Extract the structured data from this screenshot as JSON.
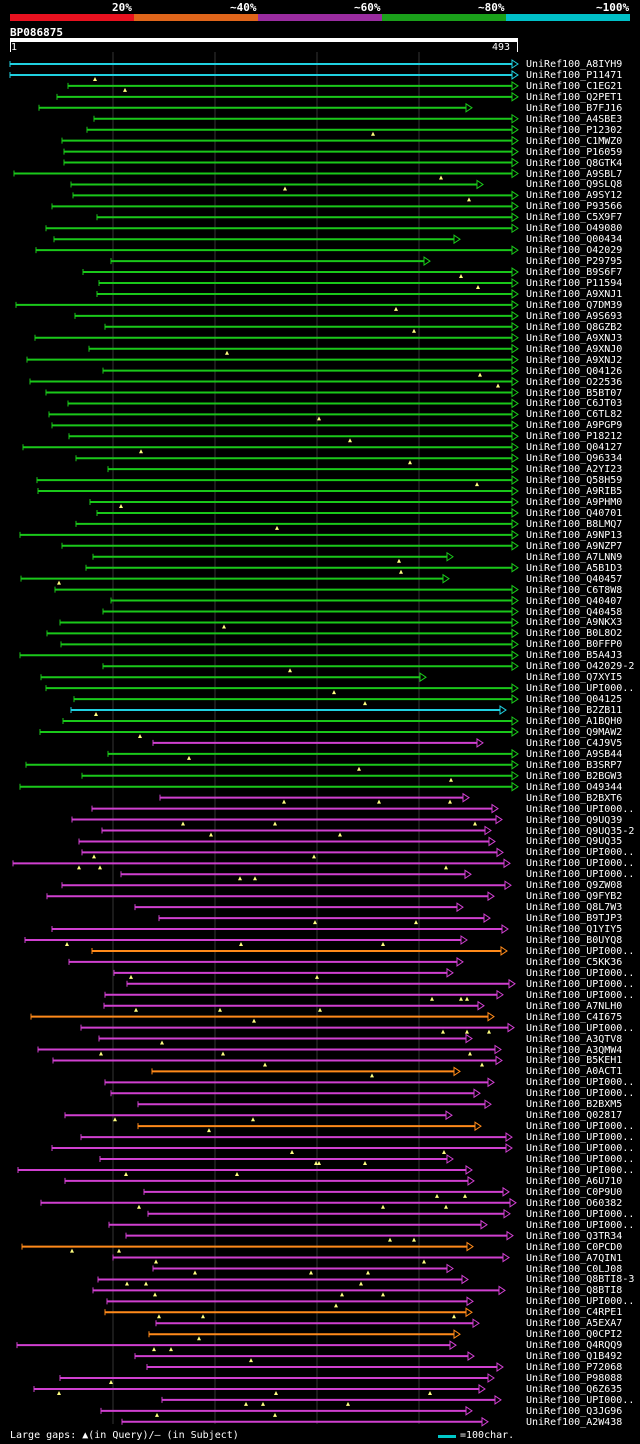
{
  "colors": {
    "lt20": "#e8111f",
    "p40": "#e0651a",
    "p60": "#9a2ca0",
    "p80": "#1aa01a",
    "p100": "#00c0c8",
    "sub_magenta": "#d040d0",
    "sub_orange": "#ff8a1a",
    "sub_green": "#1ac81a",
    "sub_cyan": "#20d0e0"
  },
  "legend": {
    "labels": [
      "20%",
      "~40%",
      "~60%",
      "~80%",
      "~100%"
    ]
  },
  "query": {
    "name": "BP086875",
    "start": "1",
    "end": "493"
  },
  "footer": {
    "gaps_text": "Large gaps: ▲(in Query)/― (in Subject)",
    "scale_text": "=100char."
  },
  "hits": [
    {
      "name": "UniRef100_A8IYH9",
      "c": "cyan"
    },
    {
      "name": "UniRef100_P11471",
      "c": "cyan"
    },
    {
      "name": "UniRef100_C1EG21",
      "c": "green"
    },
    {
      "name": "UniRef100_Q2PET1",
      "c": "green"
    },
    {
      "name": "UniRef100_B7FJ16",
      "c": "green"
    },
    {
      "name": "UniRef100_A4SBE3",
      "c": "green"
    },
    {
      "name": "UniRef100_P12302",
      "c": "green"
    },
    {
      "name": "UniRef100_C1MWZ0",
      "c": "green"
    },
    {
      "name": "UniRef100_P16059",
      "c": "green"
    },
    {
      "name": "UniRef100_Q8GTK4",
      "c": "green"
    },
    {
      "name": "UniRef100_A9SBL7",
      "c": "green"
    },
    {
      "name": "UniRef100_Q9SLQ8",
      "c": "green"
    },
    {
      "name": "UniRef100_A9SY12",
      "c": "green"
    },
    {
      "name": "UniRef100_P93566",
      "c": "green"
    },
    {
      "name": "UniRef100_C5X9F7",
      "c": "green"
    },
    {
      "name": "UniRef100_O49080",
      "c": "green"
    },
    {
      "name": "UniRef100_Q00434",
      "c": "green"
    },
    {
      "name": "UniRef100_O42029",
      "c": "green"
    },
    {
      "name": "UniRef100_P29795",
      "c": "green"
    },
    {
      "name": "UniRef100_B9S6F7",
      "c": "green"
    },
    {
      "name": "UniRef100_P11594",
      "c": "green"
    },
    {
      "name": "UniRef100_A9XNJ1",
      "c": "green"
    },
    {
      "name": "UniRef100_Q7DM39",
      "c": "green"
    },
    {
      "name": "UniRef100_A9S693",
      "c": "green"
    },
    {
      "name": "UniRef100_Q8GZB2",
      "c": "green"
    },
    {
      "name": "UniRef100_A9XNJ3",
      "c": "green"
    },
    {
      "name": "UniRef100_A9XNJ0",
      "c": "green"
    },
    {
      "name": "UniRef100_A9XNJ2",
      "c": "green"
    },
    {
      "name": "UniRef100_Q04126",
      "c": "green"
    },
    {
      "name": "UniRef100_O22536",
      "c": "green"
    },
    {
      "name": "UniRef100_B5BT07",
      "c": "green"
    },
    {
      "name": "UniRef100_C6JT03",
      "c": "green"
    },
    {
      "name": "UniRef100_C6TL82",
      "c": "green"
    },
    {
      "name": "UniRef100_A9PGP9",
      "c": "green"
    },
    {
      "name": "UniRef100_P18212",
      "c": "green"
    },
    {
      "name": "UniRef100_Q04127",
      "c": "green"
    },
    {
      "name": "UniRef100_Q96334",
      "c": "green"
    },
    {
      "name": "UniRef100_A2YI23",
      "c": "green"
    },
    {
      "name": "UniRef100_Q58H59",
      "c": "green"
    },
    {
      "name": "UniRef100_A9RIB5",
      "c": "green"
    },
    {
      "name": "UniRef100_A9PHM0",
      "c": "green"
    },
    {
      "name": "UniRef100_Q40701",
      "c": "green"
    },
    {
      "name": "UniRef100_B8LMQ7",
      "c": "green"
    },
    {
      "name": "UniRef100_A9NP13",
      "c": "green"
    },
    {
      "name": "UniRef100_A9NZP7",
      "c": "green"
    },
    {
      "name": "UniRef100_A7LNN9",
      "c": "green"
    },
    {
      "name": "UniRef100_A5B1D3",
      "c": "green"
    },
    {
      "name": "UniRef100_Q40457",
      "c": "green"
    },
    {
      "name": "UniRef100_C6T8W8",
      "c": "green"
    },
    {
      "name": "UniRef100_Q40407",
      "c": "green"
    },
    {
      "name": "UniRef100_Q40458",
      "c": "green"
    },
    {
      "name": "UniRef100_A9NKX3",
      "c": "green"
    },
    {
      "name": "UniRef100_B0L8O2",
      "c": "green"
    },
    {
      "name": "UniRef100_B0FFP0",
      "c": "green"
    },
    {
      "name": "UniRef100_B5A4J3",
      "c": "green"
    },
    {
      "name": "UniRef100_O42029-2",
      "c": "green"
    },
    {
      "name": "UniRef100_Q7XYI5",
      "c": "green"
    },
    {
      "name": "UniRef100_UPI000..",
      "c": "green"
    },
    {
      "name": "UniRef100_Q04125",
      "c": "green"
    },
    {
      "name": "UniRef100_B2ZB11",
      "c": "cyan"
    },
    {
      "name": "UniRef100_A1BQH0",
      "c": "green"
    },
    {
      "name": "UniRef100_Q9MAW2",
      "c": "green"
    },
    {
      "name": "UniRef100_C4J9V5",
      "c": "magenta"
    },
    {
      "name": "UniRef100_A9SB44",
      "c": "green"
    },
    {
      "name": "UniRef100_B3SRP7",
      "c": "green"
    },
    {
      "name": "UniRef100_B2BGW3",
      "c": "green"
    },
    {
      "name": "UniRef100_O49344",
      "c": "green"
    },
    {
      "name": "UniRef100_B2BXT6",
      "c": "magenta"
    },
    {
      "name": "UniRef100_UPI000..",
      "c": "magenta"
    },
    {
      "name": "UniRef100_Q9UQ39",
      "c": "magenta"
    },
    {
      "name": "UniRef100_Q9UQ35-2",
      "c": "magenta"
    },
    {
      "name": "UniRef100_Q9UQ35",
      "c": "magenta"
    },
    {
      "name": "UniRef100_UPI000..",
      "c": "magenta"
    },
    {
      "name": "UniRef100_UPI000..",
      "c": "magenta"
    },
    {
      "name": "UniRef100_UPI000..",
      "c": "magenta"
    },
    {
      "name": "UniRef100_Q9ZW08",
      "c": "magenta"
    },
    {
      "name": "UniRef100_Q9FYB2",
      "c": "magenta"
    },
    {
      "name": "UniRef100_Q8L7W3",
      "c": "magenta"
    },
    {
      "name": "UniRef100_B9TJP3",
      "c": "magenta"
    },
    {
      "name": "UniRef100_Q1YIY5",
      "c": "magenta"
    },
    {
      "name": "UniRef100_B0UYQ8",
      "c": "magenta"
    },
    {
      "name": "UniRef100_UPI000..",
      "c": "orange"
    },
    {
      "name": "UniRef100_C5KK36",
      "c": "magenta"
    },
    {
      "name": "UniRef100_UPI000..",
      "c": "magenta"
    },
    {
      "name": "UniRef100_UPI000..",
      "c": "magenta"
    },
    {
      "name": "UniRef100_UPI000..",
      "c": "magenta"
    },
    {
      "name": "UniRef100_A7NLH0",
      "c": "magenta"
    },
    {
      "name": "UniRef100_C4I675",
      "c": "orange"
    },
    {
      "name": "UniRef100_UPI000..",
      "c": "magenta"
    },
    {
      "name": "UniRef100_A3QTV8",
      "c": "magenta"
    },
    {
      "name": "UniRef100_A3QMW4",
      "c": "magenta"
    },
    {
      "name": "UniRef100_B5KEH1",
      "c": "magenta"
    },
    {
      "name": "UniRef100_A0ACT1",
      "c": "orange"
    },
    {
      "name": "UniRef100_UPI000..",
      "c": "magenta"
    },
    {
      "name": "UniRef100_UPI000..",
      "c": "magenta"
    },
    {
      "name": "UniRef100_B2BXM5",
      "c": "magenta"
    },
    {
      "name": "UniRef100_Q02817",
      "c": "magenta"
    },
    {
      "name": "UniRef100_UPI000..",
      "c": "orange"
    },
    {
      "name": "UniRef100_UPI000..",
      "c": "magenta"
    },
    {
      "name": "UniRef100_UPI000..",
      "c": "magenta"
    },
    {
      "name": "UniRef100_UPI000..",
      "c": "magenta"
    },
    {
      "name": "UniRef100_UPI000..",
      "c": "magenta"
    },
    {
      "name": "UniRef100_A6U710",
      "c": "magenta"
    },
    {
      "name": "UniRef100_C0P9U0",
      "c": "magenta"
    },
    {
      "name": "UniRef100_O60382",
      "c": "magenta"
    },
    {
      "name": "UniRef100_UPI000..",
      "c": "magenta"
    },
    {
      "name": "UniRef100_UPI000..",
      "c": "magenta"
    },
    {
      "name": "UniRef100_Q3TR34",
      "c": "magenta"
    },
    {
      "name": "UniRef100_C0PCD0",
      "c": "orange"
    },
    {
      "name": "UniRef100_A7QIN1",
      "c": "magenta"
    },
    {
      "name": "UniRef100_C0LJ08",
      "c": "magenta"
    },
    {
      "name": "UniRef100_Q8BTI8-3",
      "c": "magenta"
    },
    {
      "name": "UniRef100_Q8BTI8",
      "c": "magenta"
    },
    {
      "name": "UniRef100_UPI000..",
      "c": "magenta"
    },
    {
      "name": "UniRef100_C4RPE1",
      "c": "orange"
    },
    {
      "name": "UniRef100_A5EXA7",
      "c": "magenta"
    },
    {
      "name": "UniRef100_Q0CPI2",
      "c": "orange"
    },
    {
      "name": "UniRef100_Q4RQQ9",
      "c": "magenta"
    },
    {
      "name": "UniRef100_Q1B492",
      "c": "magenta"
    },
    {
      "name": "UniRef100_P72068",
      "c": "magenta"
    },
    {
      "name": "UniRef100_P98088",
      "c": "magenta"
    },
    {
      "name": "UniRef100_Q6Z635",
      "c": "magenta"
    },
    {
      "name": "UniRef100_UPI000..",
      "c": "magenta"
    },
    {
      "name": "UniRef100_Q3JG96",
      "c": "magenta"
    },
    {
      "name": "UniRef100_A2W438",
      "c": "magenta"
    }
  ]
}
